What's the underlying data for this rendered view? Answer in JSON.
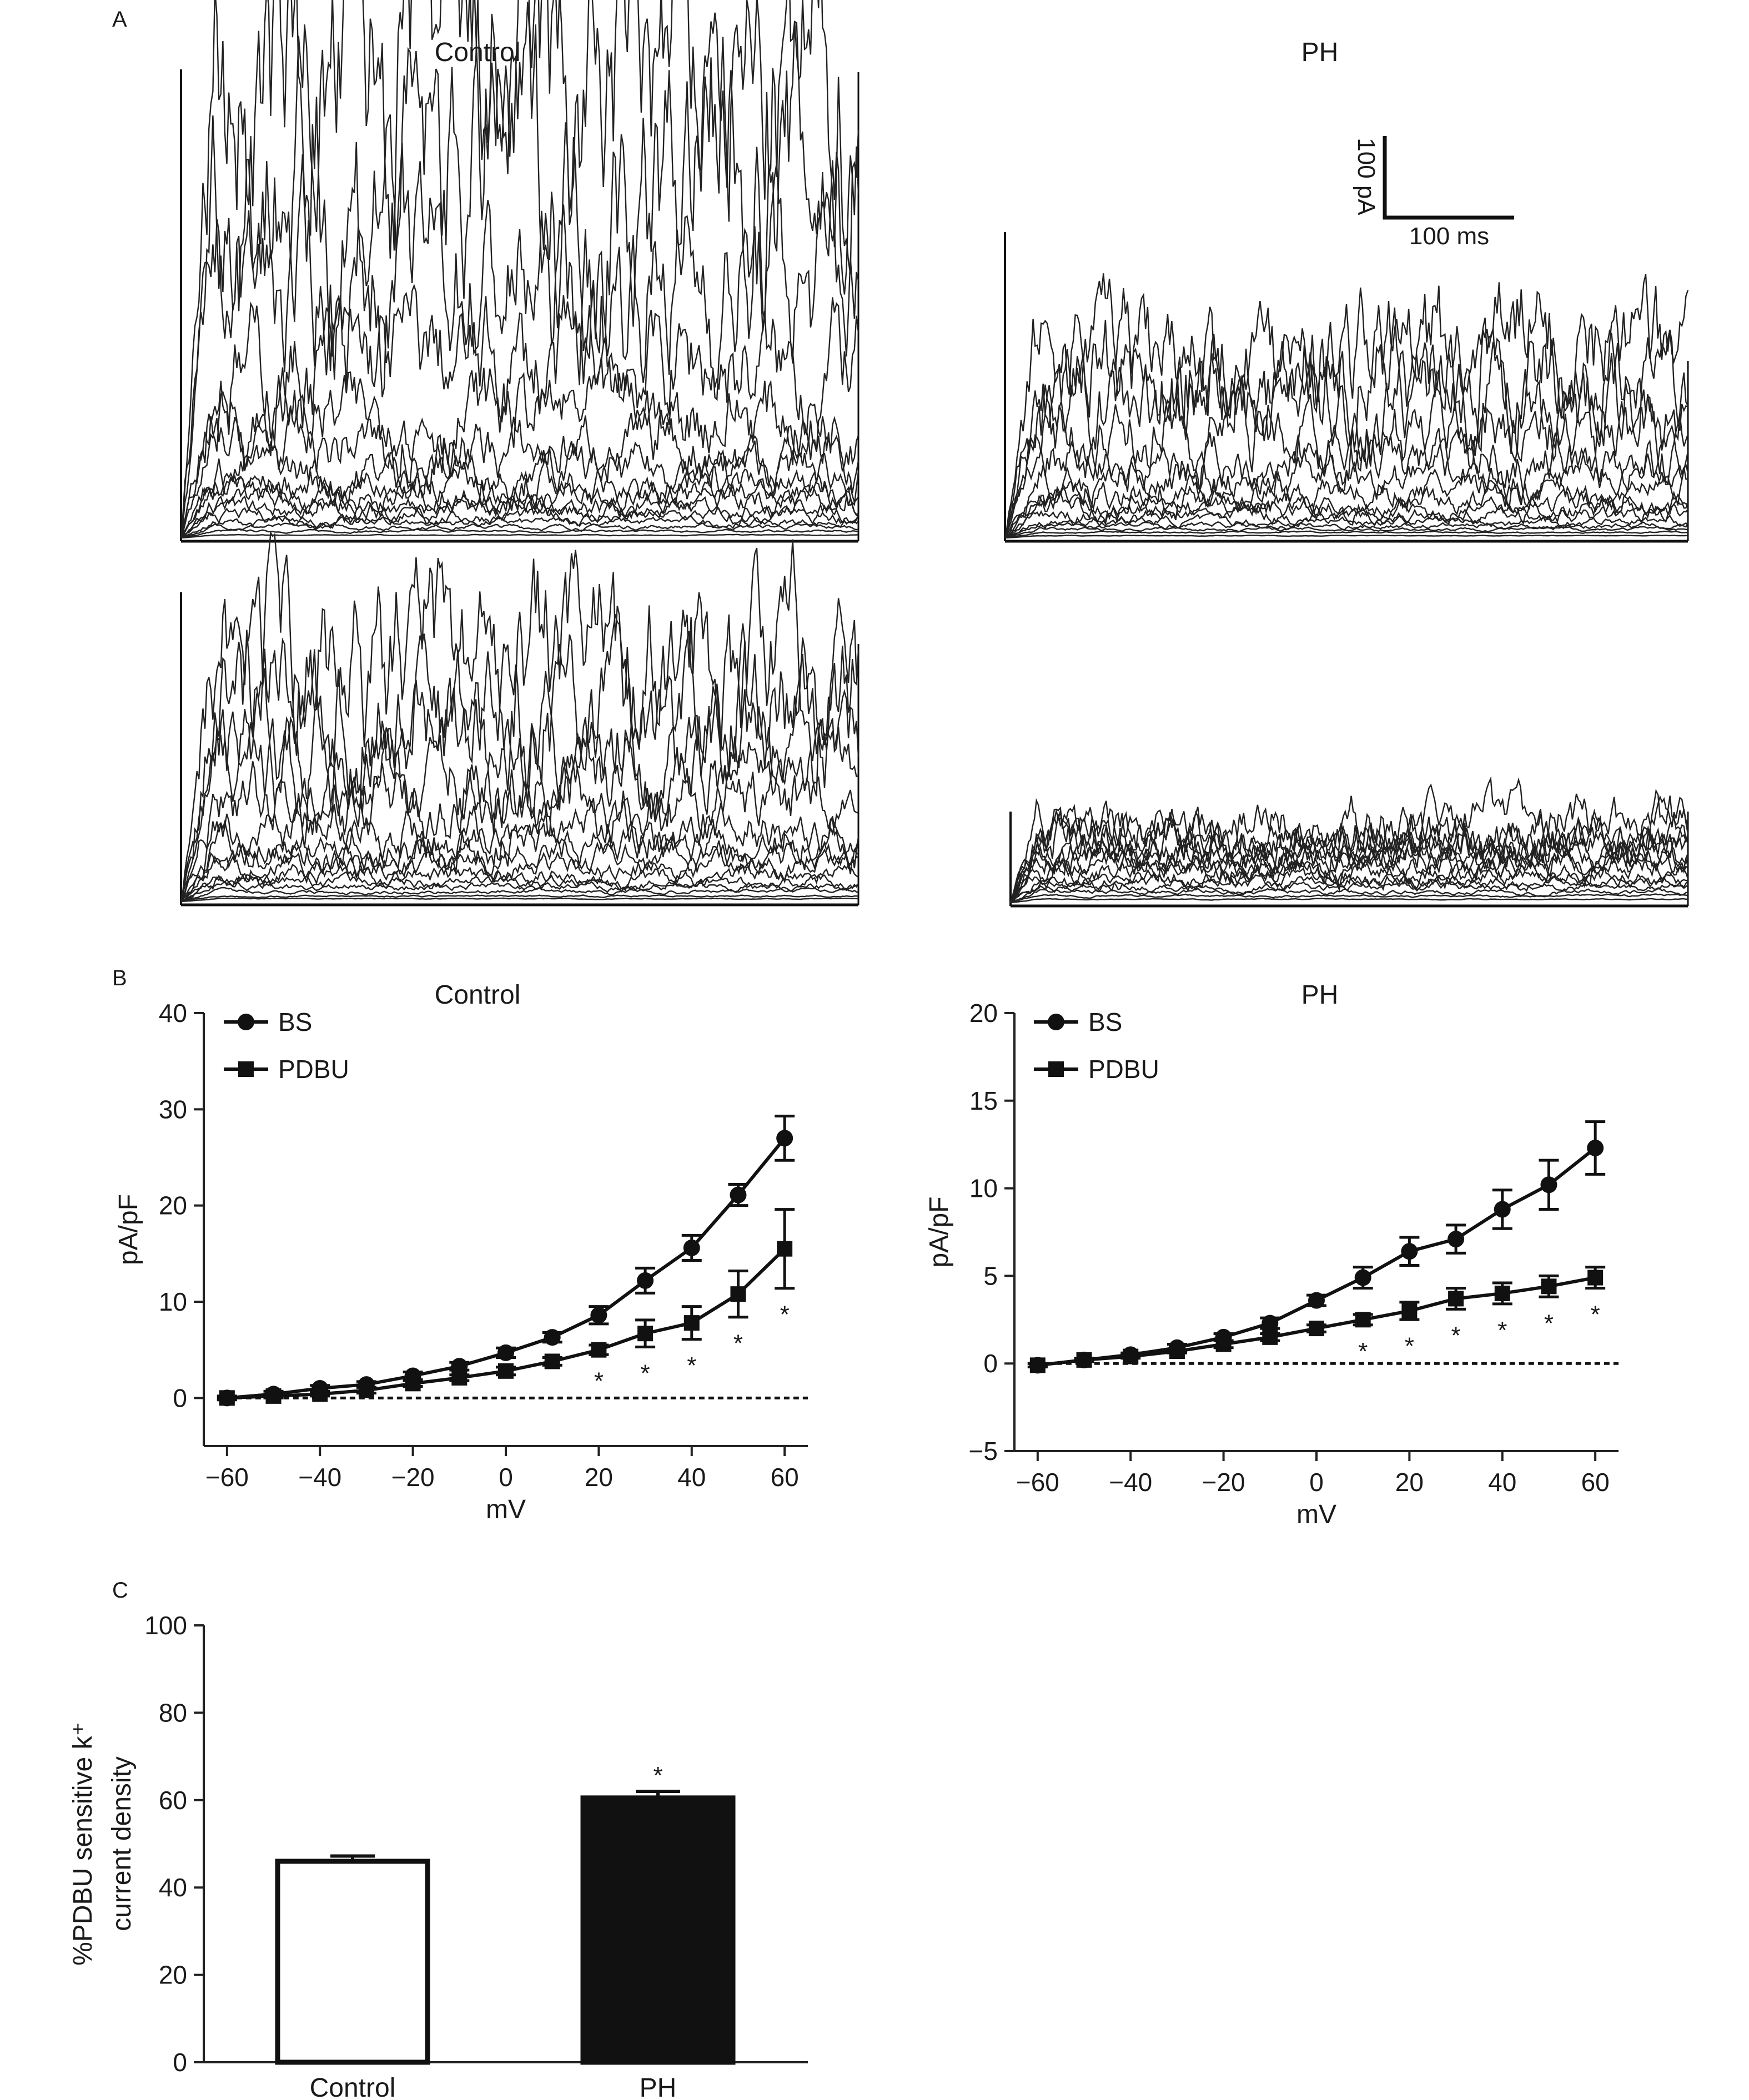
{
  "panels": {
    "A": {
      "letter": "A",
      "col_titles": [
        "Control",
        "PH"
      ],
      "scale_bar": {
        "y_label": "100 pA",
        "x_label": "100 ms"
      },
      "traces_note": "whole-cell current traces (no numeric data printed)"
    },
    "B": {
      "letter": "B"
    },
    "C": {
      "letter": "C"
    }
  },
  "chart_data": [
    {
      "id": "B-control",
      "type": "line",
      "title": "Control",
      "xlabel": "mV",
      "ylabel": "pA/pF",
      "xlim": [
        -65,
        65
      ],
      "ylim": [
        -5,
        40
      ],
      "xticks": [
        -60,
        -40,
        -20,
        0,
        20,
        40,
        60
      ],
      "yticks": [
        0,
        10,
        20,
        30,
        40
      ],
      "x": [
        -60,
        -50,
        -40,
        -30,
        -20,
        -10,
        0,
        10,
        20,
        30,
        40,
        50,
        60
      ],
      "series": [
        {
          "name": "BS",
          "marker": "circle",
          "values": [
            0,
            0.4,
            1.0,
            1.4,
            2.3,
            3.3,
            4.7,
            6.3,
            8.6,
            12.2,
            15.6,
            21.1,
            27.0
          ],
          "errors": [
            0.2,
            0.3,
            0.3,
            0.3,
            0.4,
            0.4,
            0.5,
            0.5,
            0.9,
            1.3,
            1.3,
            1.1,
            2.3
          ]
        },
        {
          "name": "PDBU",
          "marker": "square",
          "values": [
            0,
            0.2,
            0.4,
            0.8,
            1.5,
            2.1,
            2.8,
            3.8,
            5.0,
            6.7,
            7.8,
            10.8,
            15.5
          ],
          "errors": [
            0.1,
            0.2,
            0.2,
            0.3,
            0.3,
            0.3,
            0.4,
            0.4,
            0.5,
            1.4,
            1.7,
            2.4,
            4.1
          ]
        }
      ],
      "significance": {
        "label": "*",
        "x": [
          20,
          30,
          40,
          50,
          60
        ]
      },
      "legend_position": "top-left",
      "zero_line": "dashed"
    },
    {
      "id": "B-ph",
      "type": "line",
      "title": "PH",
      "xlabel": "mV",
      "ylabel": "pA/pF",
      "xlim": [
        -65,
        65
      ],
      "ylim": [
        -5,
        20
      ],
      "xticks": [
        -60,
        -40,
        -20,
        0,
        20,
        40,
        60
      ],
      "yticks": [
        -5,
        0,
        5,
        10,
        15,
        20
      ],
      "x": [
        -60,
        -50,
        -40,
        -30,
        -20,
        -10,
        0,
        10,
        20,
        30,
        40,
        50,
        60
      ],
      "series": [
        {
          "name": "BS",
          "marker": "circle",
          "values": [
            -0.1,
            0.2,
            0.5,
            0.9,
            1.5,
            2.3,
            3.6,
            4.9,
            6.4,
            7.1,
            8.8,
            10.2,
            12.3
          ],
          "errors": [
            0.1,
            0.1,
            0.1,
            0.2,
            0.2,
            0.3,
            0.3,
            0.6,
            0.8,
            0.8,
            1.1,
            1.4,
            1.5
          ]
        },
        {
          "name": "PDBU",
          "marker": "square",
          "values": [
            -0.1,
            0.2,
            0.4,
            0.7,
            1.1,
            1.5,
            2.0,
            2.5,
            3.0,
            3.7,
            4.0,
            4.4,
            4.9
          ],
          "errors": [
            0.1,
            0.1,
            0.1,
            0.1,
            0.2,
            0.2,
            0.2,
            0.3,
            0.5,
            0.6,
            0.6,
            0.6,
            0.6
          ]
        }
      ],
      "significance": {
        "label": "*",
        "x": [
          10,
          20,
          30,
          40,
          50,
          60
        ]
      },
      "legend_position": "top-left",
      "zero_line": "dashed"
    },
    {
      "id": "C",
      "type": "bar",
      "categories": [
        "Control",
        "PH"
      ],
      "values": [
        46,
        60.5
      ],
      "errors": [
        1.2,
        1.5
      ],
      "colors": [
        "#ffffff",
        "#111111"
      ],
      "ylabel_lines": [
        "%PDBU sensitive k⁺",
        "current density"
      ],
      "ylim": [
        0,
        100
      ],
      "yticks": [
        0,
        20,
        40,
        60,
        80,
        100
      ],
      "significance": {
        "label": "*",
        "category": "PH"
      }
    }
  ]
}
